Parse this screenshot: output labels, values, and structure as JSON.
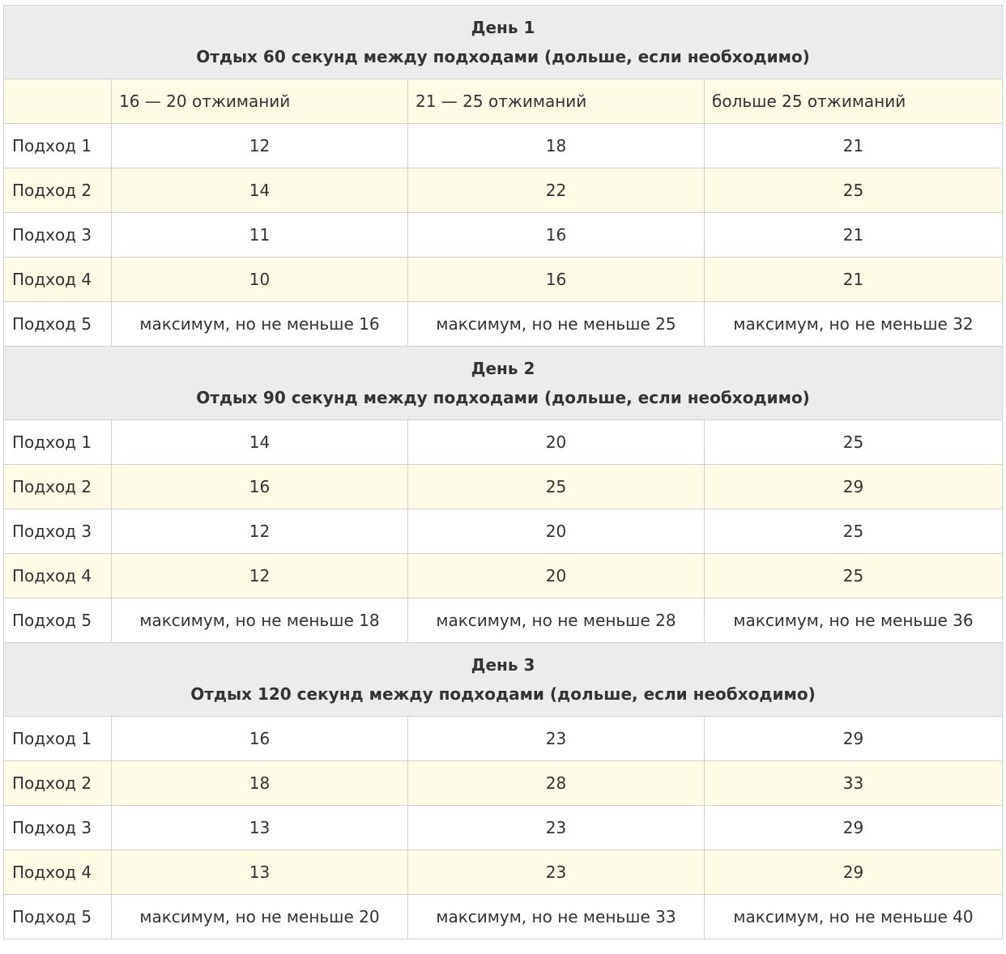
{
  "columns": [
    "16 — 20 отжиманий",
    "21 — 25 отжиманий",
    "больше 25 отжиманий"
  ],
  "days": [
    {
      "title": "День 1",
      "subtitle": "Отдых 60 секунд между подходами (дольше, если необходимо)",
      "rows": [
        {
          "label": "Подход 1",
          "cells": [
            12,
            18,
            21
          ]
        },
        {
          "label": "Подход 2",
          "cells": [
            14,
            22,
            25
          ]
        },
        {
          "label": "Подход 3",
          "cells": [
            11,
            16,
            21
          ]
        },
        {
          "label": "Подход 4",
          "cells": [
            10,
            16,
            21
          ]
        },
        {
          "label": "Подход 5",
          "cells": [
            "максимум, но не меньше 16",
            "максимум, но не меньше 25",
            "максимум, но не меньше 32"
          ]
        }
      ]
    },
    {
      "title": "День 2",
      "subtitle": "Отдых 90 секунд между подходами (дольше, если необходимо)",
      "rows": [
        {
          "label": "Подход 1",
          "cells": [
            14,
            20,
            25
          ]
        },
        {
          "label": "Подход 2",
          "cells": [
            16,
            25,
            29
          ]
        },
        {
          "label": "Подход 3",
          "cells": [
            12,
            20,
            25
          ]
        },
        {
          "label": "Подход 4",
          "cells": [
            12,
            20,
            25
          ]
        },
        {
          "label": "Подход 5",
          "cells": [
            "максимум, но не меньше 18",
            "максимум, но не меньше 28",
            "максимум, но не меньше 36"
          ]
        }
      ]
    },
    {
      "title": "День 3",
      "subtitle": "Отдых 120 секунд между подходами (дольше, если необходимо)",
      "rows": [
        {
          "label": "Подход 1",
          "cells": [
            16,
            23,
            29
          ]
        },
        {
          "label": "Подход 2",
          "cells": [
            18,
            28,
            33
          ]
        },
        {
          "label": "Подход 3",
          "cells": [
            13,
            23,
            29
          ]
        },
        {
          "label": "Подход 4",
          "cells": [
            13,
            23,
            29
          ]
        },
        {
          "label": "Подход 5",
          "cells": [
            "максимум, но не меньше 20",
            "максимум, но не меньше 33",
            "максимум, но не меньше 40"
          ]
        }
      ]
    }
  ]
}
